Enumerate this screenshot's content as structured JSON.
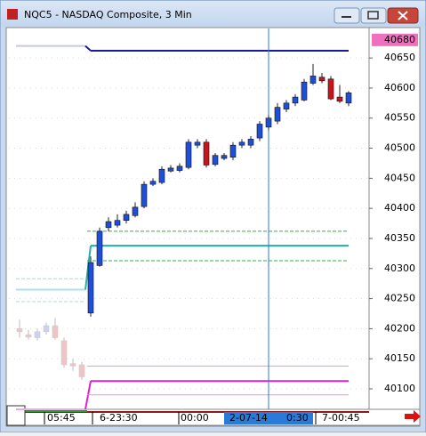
{
  "window": {
    "title": "NQC5 - NASDAQ Composite, 3 Min"
  },
  "chart_data": {
    "type": "candlestick",
    "ylim": [
      40066,
      40699
    ],
    "yticks": [
      40100,
      40150,
      40200,
      40250,
      40300,
      40350,
      40400,
      40450,
      40500,
      40550,
      40600,
      40650
    ],
    "price_marker": 40680,
    "x_labels": [
      "05:45",
      "6-23:30",
      "00:00",
      "2-07-14",
      "0:30",
      "7-00:45"
    ],
    "up_color": "#1f4fd6",
    "down_color": "#c8141c",
    "prior_up_color": "#c9d3f0",
    "prior_down_color": "#f0c4c6",
    "grid": true,
    "prior_candles": [
      {
        "open": 40200,
        "high": 40215,
        "low": 40185,
        "close": 40195
      },
      {
        "open": 40190,
        "high": 40198,
        "low": 40182,
        "close": 40186
      },
      {
        "open": 40185,
        "high": 40200,
        "low": 40180,
        "close": 40195
      },
      {
        "open": 40195,
        "high": 40210,
        "low": 40190,
        "close": 40205
      },
      {
        "open": 40205,
        "high": 40218,
        "low": 40182,
        "close": 40185
      },
      {
        "open": 40180,
        "high": 40185,
        "low": 40135,
        "close": 40140
      },
      {
        "open": 40142,
        "high": 40150,
        "low": 40130,
        "close": 40138
      },
      {
        "open": 40140,
        "high": 40145,
        "low": 40115,
        "close": 40120
      }
    ],
    "candles": [
      {
        "open": 40226,
        "high": 40320,
        "low": 40220,
        "close": 40310
      },
      {
        "open": 40305,
        "high": 40368,
        "low": 40303,
        "close": 40362
      },
      {
        "open": 40368,
        "high": 40385,
        "low": 40362,
        "close": 40378
      },
      {
        "open": 40372,
        "high": 40390,
        "low": 40368,
        "close": 40380
      },
      {
        "open": 40380,
        "high": 40396,
        "low": 40375,
        "close": 40390
      },
      {
        "open": 40388,
        "high": 40410,
        "low": 40385,
        "close": 40402
      },
      {
        "open": 40403,
        "high": 40445,
        "low": 40400,
        "close": 40440
      },
      {
        "open": 40440,
        "high": 40450,
        "low": 40437,
        "close": 40445
      },
      {
        "open": 40443,
        "high": 40470,
        "low": 40440,
        "close": 40465
      },
      {
        "open": 40462,
        "high": 40472,
        "low": 40460,
        "close": 40467
      },
      {
        "open": 40463,
        "high": 40475,
        "low": 40460,
        "close": 40470
      },
      {
        "open": 40468,
        "high": 40515,
        "low": 40465,
        "close": 40510
      },
      {
        "open": 40505,
        "high": 40515,
        "low": 40500,
        "close": 40510
      },
      {
        "open": 40510,
        "high": 40515,
        "low": 40468,
        "close": 40472
      },
      {
        "open": 40473,
        "high": 40492,
        "low": 40470,
        "close": 40488
      },
      {
        "open": 40483,
        "high": 40492,
        "low": 40480,
        "close": 40488
      },
      {
        "open": 40485,
        "high": 40510,
        "low": 40480,
        "close": 40505
      },
      {
        "open": 40505,
        "high": 40515,
        "low": 40500,
        "close": 40510
      },
      {
        "open": 40505,
        "high": 40520,
        "low": 40500,
        "close": 40515
      },
      {
        "open": 40517,
        "high": 40545,
        "low": 40512,
        "close": 40540
      },
      {
        "open": 40535,
        "high": 40555,
        "low": 40530,
        "close": 40550
      },
      {
        "open": 40545,
        "high": 40575,
        "low": 40540,
        "close": 40568
      },
      {
        "open": 40565,
        "high": 40580,
        "low": 40560,
        "close": 40575
      },
      {
        "open": 40575,
        "high": 40590,
        "low": 40570,
        "close": 40585
      },
      {
        "open": 40580,
        "high": 40615,
        "low": 40578,
        "close": 40610
      },
      {
        "open": 40608,
        "high": 40640,
        "low": 40605,
        "close": 40620
      },
      {
        "open": 40618,
        "high": 40625,
        "low": 40608,
        "close": 40612
      },
      {
        "open": 40615,
        "high": 40620,
        "low": 40580,
        "close": 40582
      },
      {
        "open": 40585,
        "high": 40605,
        "low": 40575,
        "close": 40578
      },
      {
        "open": 40575,
        "high": 40595,
        "low": 40570,
        "close": 40592
      }
    ],
    "levels": [
      {
        "value": 40662,
        "color": "#1a1aa0",
        "dashed": false,
        "width": 2,
        "prior_value": 40670,
        "prior_color": "#c8c8e8"
      },
      {
        "value": 40338,
        "color": "#20b0b0",
        "dashed": false,
        "width": 2,
        "prior_value": 40265,
        "prior_color": "#a8e4e4"
      },
      {
        "value": 40362,
        "color": "#30b050",
        "dashed": true,
        "width": 1,
        "prior_value": 40283,
        "prior_color": "#a8e0c8"
      },
      {
        "value": 40313,
        "color": "#30b050",
        "dashed": true,
        "width": 1,
        "prior_value": 40245,
        "prior_color": "#a8e0c8"
      },
      {
        "value": 40113,
        "color": "#e020d0",
        "dashed": false,
        "width": 2,
        "prior_value": 40066,
        "prior_color": "#f0a8e8"
      },
      {
        "value": 40138,
        "color": "#f090e0",
        "dashed": false,
        "width": 1,
        "prior_value": null,
        "prior_color": null
      },
      {
        "value": 40090,
        "color": "#f090e0",
        "dashed": false,
        "width": 1,
        "prior_value": null,
        "prior_color": null
      }
    ]
  }
}
